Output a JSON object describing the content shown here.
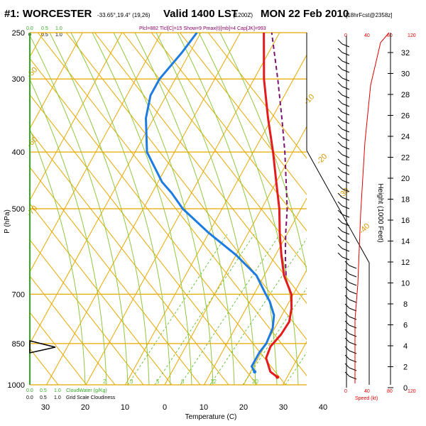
{
  "header": {
    "station": "#1: WORCESTER",
    "coords": "-33.65°,19.4° (19,26)",
    "valid": "Valid 1400 LST",
    "zulu": "(1200Z)",
    "date": "MON 22 Feb 2010",
    "forecast": "[18hrFcst@2358z]",
    "params": "Plcl=882 Tlcl[C]=15 Show=9 Pmax(t)[mb]=4 Cap[JK]=993"
  },
  "legend": {
    "cloud_top": [
      "0.0",
      "0.5",
      "1.0"
    ],
    "cloud_top_k": [
      "0",
      "0.5",
      "1.0"
    ],
    "cloudwater_values": [
      "0.0",
      "0.5",
      "1.0"
    ],
    "cloudwater_label": "CloudWater (g/Kg)",
    "gridscale_values": [
      "0.0",
      "0.5",
      "1.0"
    ],
    "gridscale_label": "Grid Scale Cloudiness"
  },
  "speed_axis": {
    "ticks_top": [
      "0",
      "40",
      "80",
      "120"
    ],
    "ticks_bottom": [
      "0",
      "40",
      "80",
      "120"
    ],
    "label": "Speed (kt)"
  },
  "colors": {
    "temperature": "#e41a1c",
    "dewpoint": "#1e7be0",
    "parcel": "#7a1470",
    "isotherm": "#e8a800",
    "mixing_ratio": "#6cc33a",
    "dry_adiabat": "#e8a800",
    "moist_adiabat": "#8fc83f",
    "speed": "#e00000"
  },
  "chart_data": {
    "type": "line",
    "ylabel": "P (hPa)",
    "xlabel": "Temperature (C)",
    "y2label": "Height (1000 Feet)",
    "yscale": "log",
    "ylim": [
      1000,
      250
    ],
    "xlim": [
      -30,
      45
    ],
    "pressure_ticks": [
      250,
      300,
      400,
      500,
      700,
      850,
      1000
    ],
    "temp_ticks": [
      30,
      20,
      10,
      0,
      10,
      20,
      30,
      40
    ],
    "height_ticks": [
      0,
      2,
      4,
      6,
      8,
      10,
      12,
      14,
      16,
      18,
      20,
      22,
      24,
      26,
      28,
      30,
      32
    ],
    "isotherm_labels": [
      "-10",
      "-20",
      "-30",
      "-40",
      "-50",
      "-60",
      "-70"
    ],
    "mixing_ratio_labels": [
      "2",
      "3",
      "5",
      "8",
      "12",
      "20"
    ],
    "series": [
      {
        "name": "Temperature",
        "points": [
          {
            "p": 970,
            "t": 27.5
          },
          {
            "p": 950,
            "t": 25
          },
          {
            "p": 900,
            "t": 22
          },
          {
            "p": 860,
            "t": 21.5
          },
          {
            "p": 820,
            "t": 22.5
          },
          {
            "p": 780,
            "t": 22.8
          },
          {
            "p": 740,
            "t": 21.5
          },
          {
            "p": 700,
            "t": 19.5
          },
          {
            "p": 650,
            "t": 15
          },
          {
            "p": 600,
            "t": 11.5
          },
          {
            "p": 550,
            "t": 8
          },
          {
            "p": 500,
            "t": 4.5
          },
          {
            "p": 450,
            "t": 0
          },
          {
            "p": 400,
            "t": -5
          },
          {
            "p": 350,
            "t": -11
          },
          {
            "p": 300,
            "t": -17.5
          },
          {
            "p": 250,
            "t": -24
          }
        ]
      },
      {
        "name": "Dewpoint",
        "points": [
          {
            "p": 950,
            "t": 21
          },
          {
            "p": 930,
            "t": 19.5
          },
          {
            "p": 880,
            "t": 19.5
          },
          {
            "p": 850,
            "t": 20
          },
          {
            "p": 800,
            "t": 19.5
          },
          {
            "p": 760,
            "t": 18
          },
          {
            "p": 720,
            "t": 15
          },
          {
            "p": 700,
            "t": 13
          },
          {
            "p": 650,
            "t": 8
          },
          {
            "p": 600,
            "t": 0
          },
          {
            "p": 550,
            "t": -10
          },
          {
            "p": 500,
            "t": -20
          },
          {
            "p": 470,
            "t": -25
          },
          {
            "p": 450,
            "t": -29
          },
          {
            "p": 400,
            "t": -37
          },
          {
            "p": 350,
            "t": -42
          },
          {
            "p": 320,
            "t": -44
          },
          {
            "p": 300,
            "t": -44
          },
          {
            "p": 270,
            "t": -42
          },
          {
            "p": 250,
            "t": -41
          }
        ]
      },
      {
        "name": "Parcel",
        "points": [
          {
            "p": 650,
            "t": 15.5
          },
          {
            "p": 600,
            "t": 12.5
          },
          {
            "p": 550,
            "t": 9.5
          },
          {
            "p": 500,
            "t": 6.5
          },
          {
            "p": 450,
            "t": 2.5
          },
          {
            "p": 400,
            "t": -2
          },
          {
            "p": 350,
            "t": -7.5
          },
          {
            "p": 300,
            "t": -14
          },
          {
            "p": 250,
            "t": -22
          }
        ]
      }
    ]
  }
}
